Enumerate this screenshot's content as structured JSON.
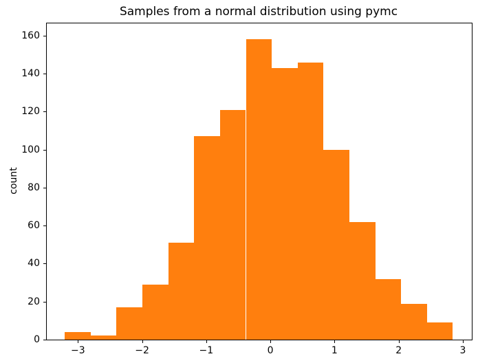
{
  "figure": {
    "background": "#ffffff",
    "text_color": "#000000"
  },
  "chart_data": {
    "type": "bar",
    "subtype": "histogram",
    "title": "Samples from a normal distribution using pymc",
    "xlabel": "",
    "ylabel": "count",
    "bar_color": "#ff7f0e",
    "bin_edges": [
      -3.205,
      -2.802,
      -2.398,
      -1.995,
      -1.592,
      -1.188,
      -0.785,
      -0.382,
      0.022,
      0.425,
      0.828,
      1.232,
      1.635,
      2.038,
      2.442,
      2.845
    ],
    "counts": [
      4,
      2,
      17,
      29,
      51,
      107,
      121,
      158,
      143,
      146,
      100,
      62,
      32,
      19,
      9
    ],
    "total_samples": 1000,
    "xticks": [
      -3,
      -2,
      -1,
      0,
      1,
      2,
      3
    ],
    "xtick_labels": [
      "−3",
      "−2",
      "−1",
      "0",
      "1",
      "2",
      "3"
    ],
    "yticks": [
      0,
      20,
      40,
      60,
      80,
      100,
      120,
      140,
      160
    ],
    "ytick_labels": [
      "0",
      "20",
      "40",
      "60",
      "80",
      "100",
      "120",
      "140",
      "160"
    ],
    "xlim": [
      -3.486,
      3.14
    ],
    "ylim": [
      0,
      166.5
    ],
    "grid": false,
    "legend_position": "none"
  }
}
